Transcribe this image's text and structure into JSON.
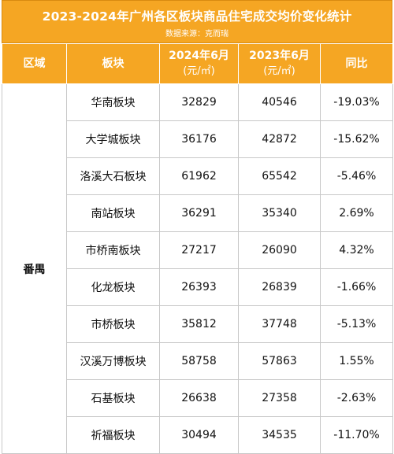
{
  "header": {
    "title": "2023-2024年广州各区板块商品住宅成交均价变化统计",
    "source": "数据来源：克而瑞"
  },
  "colors": {
    "accent": "#f5a623",
    "header_text": "#ffffff",
    "grid": "#c8c8c8"
  },
  "table": {
    "columns": {
      "region": "区域",
      "block": "板块",
      "price_2024": "2024年6月",
      "price_2024_unit": "(元/㎡)",
      "price_2023": "2023年6月",
      "price_2023_unit": "(元/㎡)",
      "yoy": "同比"
    },
    "region": "番禺",
    "rows": [
      {
        "block": "华南板块",
        "price_2024": "32829",
        "price_2023": "40546",
        "yoy": "-19.03%"
      },
      {
        "block": "大学城板块",
        "price_2024": "36176",
        "price_2023": "42872",
        "yoy": "-15.62%"
      },
      {
        "block": "洛溪大石板块",
        "price_2024": "61962",
        "price_2023": "65542",
        "yoy": "-5.46%"
      },
      {
        "block": "南站板块",
        "price_2024": "36291",
        "price_2023": "35340",
        "yoy": "2.69%"
      },
      {
        "block": "市桥南板块",
        "price_2024": "27217",
        "price_2023": "26090",
        "yoy": "4.32%"
      },
      {
        "block": "化龙板块",
        "price_2024": "26393",
        "price_2023": "26839",
        "yoy": "-1.66%"
      },
      {
        "block": "市桥板块",
        "price_2024": "35812",
        "price_2023": "37748",
        "yoy": "-5.13%"
      },
      {
        "block": "汉溪万博板块",
        "price_2024": "58758",
        "price_2023": "57863",
        "yoy": "1.55%"
      },
      {
        "block": "石基板块",
        "price_2024": "26638",
        "price_2023": "27358",
        "yoy": "-2.63%"
      },
      {
        "block": "祈福板块",
        "price_2024": "30494",
        "price_2023": "34535",
        "yoy": "-11.70%"
      }
    ]
  }
}
